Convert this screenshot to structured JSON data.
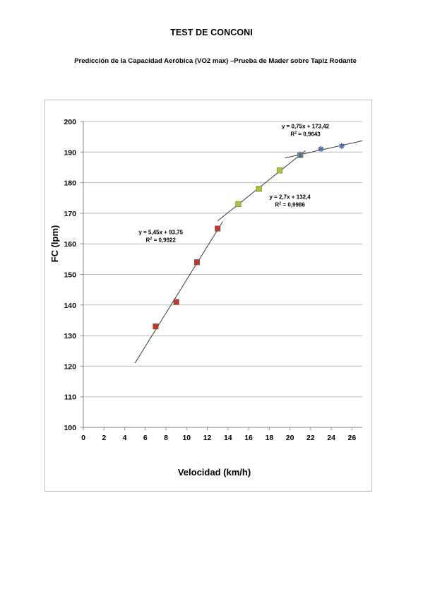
{
  "document": {
    "title": "TEST DE CONCONI",
    "subtitle": "Predicción de la Capacidad Aeróbica (VO2 max) –Prueba de Mader sobre Tapiz Rodante"
  },
  "chart_data": {
    "type": "scatter",
    "xlabel": "Velocidad (km/h)",
    "ylabel": "FC (lpm)",
    "xlim": [
      0,
      27
    ],
    "ylim": [
      100,
      200
    ],
    "xticks": [
      0,
      2,
      4,
      6,
      8,
      10,
      12,
      14,
      16,
      18,
      20,
      22,
      24,
      26
    ],
    "yticks": [
      100,
      110,
      120,
      130,
      140,
      150,
      160,
      170,
      180,
      190,
      200
    ],
    "grid": "horizontal",
    "series": [
      {
        "marker": "square",
        "color": "#c0392b",
        "x": [
          7,
          9,
          11,
          13
        ],
        "y": [
          133,
          141,
          154,
          165
        ],
        "trendline": {
          "x_range": [
            5,
            13.5
          ],
          "slope": 5.45,
          "intercept": 93.75
        }
      },
      {
        "marker": "square",
        "color": "#b5c230",
        "x": [
          15,
          17,
          19,
          21
        ],
        "y": [
          173,
          178,
          184,
          189
        ],
        "trendline": {
          "x_range": [
            13,
            21.5
          ],
          "slope": 2.7,
          "intercept": 132.4
        }
      },
      {
        "marker": "star",
        "color": "#4a6fa5",
        "x": [
          21,
          23,
          25
        ],
        "y": [
          189,
          191,
          192
        ],
        "trendline": {
          "x_range": [
            19.5,
            27
          ],
          "slope": 0.75,
          "intercept": 173.42
        }
      }
    ],
    "annotations": [
      {
        "equation": "y = 5,45x + 93,75",
        "r2_label": "R",
        "r2_value": " = 0,9922",
        "x": 7.5,
        "y": 163.2
      },
      {
        "equation": "y = 2,7x + 132,4",
        "r2_label": "R",
        "r2_value": " = 0,9986",
        "x": 20,
        "y": 174.7
      },
      {
        "equation": "y = 0,75x + 173,42",
        "r2_label": "R",
        "r2_value": " = 0,9643",
        "x": 21.5,
        "y": 197.8
      }
    ]
  }
}
